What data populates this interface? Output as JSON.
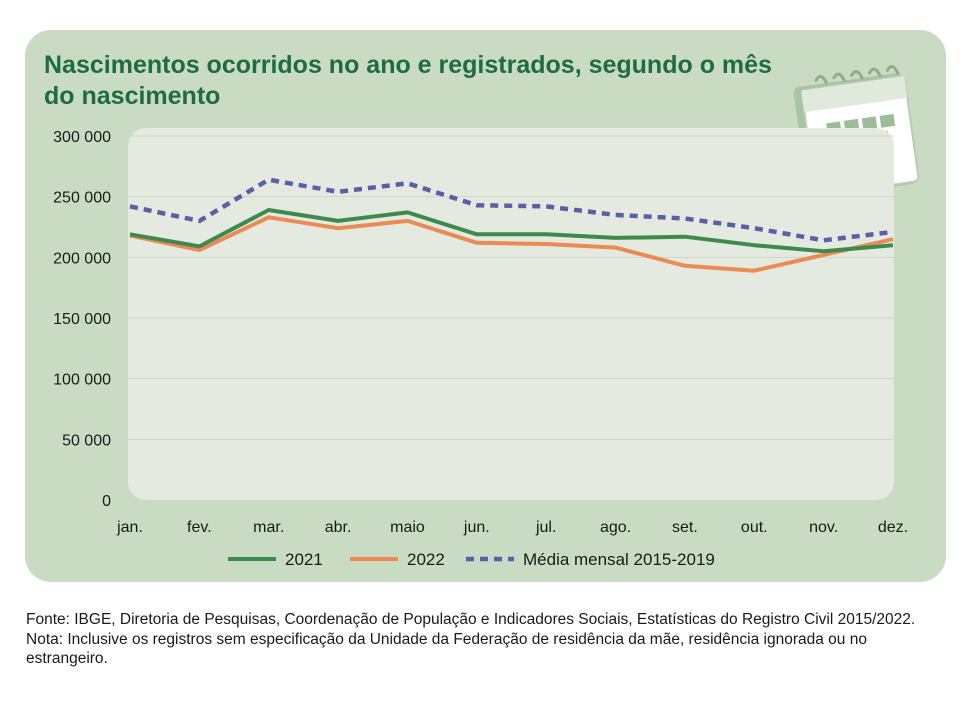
{
  "chart_data": {
    "type": "line",
    "title": "Nascimentos ocorridos no ano e registrados, segundo o mês do nascimento",
    "categories": [
      "jan.",
      "fev.",
      "mar.",
      "abr.",
      "maio",
      "jun.",
      "jul.",
      "ago.",
      "set.",
      "out.",
      "nov.",
      "dez."
    ],
    "y_ticks": [
      "0",
      "50 000",
      "100 000",
      "150 000",
      "200 000",
      "250 000",
      "300 000"
    ],
    "ylim": [
      0,
      300000
    ],
    "xlabel": "",
    "ylabel": "",
    "grid": true,
    "legend": "bottom",
    "series": [
      {
        "name": "2021",
        "color": "#3e8a4d",
        "style": "solid",
        "values": [
          219000,
          209000,
          239000,
          230000,
          237000,
          219000,
          219000,
          216000,
          217000,
          210000,
          205000,
          210000
        ]
      },
      {
        "name": "2022",
        "color": "#ec8a55",
        "style": "solid",
        "values": [
          218000,
          206000,
          233000,
          224000,
          230000,
          212000,
          211000,
          208000,
          193000,
          189000,
          202000,
          215000
        ]
      },
      {
        "name": "Média mensal 2015-2019",
        "color": "#5b5fa8",
        "style": "dashed",
        "values": [
          242000,
          230000,
          264000,
          254000,
          261000,
          243000,
          242000,
          235000,
          232000,
          224000,
          214000,
          221000
        ]
      }
    ]
  },
  "decoration": {
    "icon": "calendar-icon",
    "card_color": "#c9dcc3",
    "plot_color": "#e4eadf",
    "title_color": "#1e6b45"
  },
  "footnote": {
    "source": "Fonte: IBGE, Diretoria de Pesquisas, Coordenação de População e Indicadores Sociais, Estatísticas do Registro Civil 2015/2022.",
    "note": "Nota: Inclusive os registros sem especificação da Unidade da Federação de residência da mãe, residência ignorada ou no estrangeiro."
  }
}
